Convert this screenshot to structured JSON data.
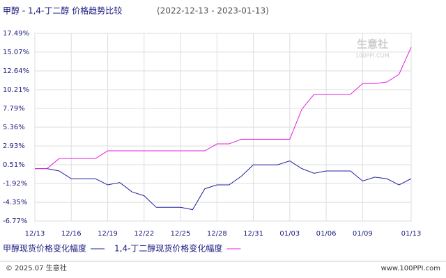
{
  "chart_data": {
    "type": "line",
    "title": "甲醇 - 1,4-丁二醇 价格趋势比较",
    "subtitle": "(2022-12-13 - 2023-01-13)",
    "watermark": [
      "生意社",
      "100PPI.COM"
    ],
    "footer_left": "© 2025.07 生意社",
    "footer_right": "www.100PPI.com",
    "categories": [
      "12/13",
      null,
      null,
      "12/16",
      null,
      null,
      "12/19",
      null,
      null,
      "12/22",
      null,
      null,
      "12/25",
      null,
      null,
      "12/28",
      null,
      null,
      "12/31",
      null,
      null,
      "01/03",
      null,
      null,
      "01/06",
      null,
      null,
      "01/09",
      null,
      null,
      null,
      "01/13"
    ],
    "series": [
      {
        "name": "甲醇现货价格变化幅度",
        "color": "#2020a0",
        "values": [
          0,
          0,
          -0.3,
          -1.3,
          -1.3,
          -1.3,
          -2.1,
          -1.8,
          -3.0,
          -3.5,
          -5.0,
          -5.0,
          -5.0,
          -5.3,
          -2.6,
          -2.1,
          -2.1,
          -1.0,
          0.5,
          0.5,
          0.5,
          1.0,
          0.0,
          -0.6,
          -0.3,
          -0.3,
          -0.3,
          -1.6,
          -1.1,
          -1.3,
          -2.1,
          -1.3
        ]
      },
      {
        "name": "1,4-丁二醇现货价格变化幅度",
        "color": "#e020e0",
        "values": [
          0,
          0,
          1.3,
          1.3,
          1.3,
          1.3,
          2.3,
          2.3,
          2.3,
          2.3,
          2.3,
          2.3,
          2.3,
          2.3,
          2.3,
          3.2,
          3.2,
          3.8,
          3.8,
          3.8,
          3.8,
          3.8,
          7.7,
          9.6,
          9.6,
          9.6,
          9.6,
          11.0,
          11.0,
          11.2,
          12.2,
          15.7
        ]
      }
    ],
    "ylim": [
      -6.77,
      17.49
    ],
    "yticks": [
      {
        "value": 17.49,
        "label": "17.49%"
      },
      {
        "value": 15.07,
        "label": "15.07%"
      },
      {
        "value": 12.64,
        "label": "12.64%"
      },
      {
        "value": 10.21,
        "label": "10.21%"
      },
      {
        "value": 7.79,
        "label": "7.79%"
      },
      {
        "value": 5.36,
        "label": "5.36%"
      },
      {
        "value": 2.93,
        "label": "2.93%"
      },
      {
        "value": 0.51,
        "label": "0.51%"
      },
      {
        "value": -1.92,
        "label": "-1.92%"
      },
      {
        "value": -4.35,
        "label": "-4.35%"
      },
      {
        "value": -6.77,
        "label": "-6.77%"
      }
    ],
    "grid": true
  }
}
